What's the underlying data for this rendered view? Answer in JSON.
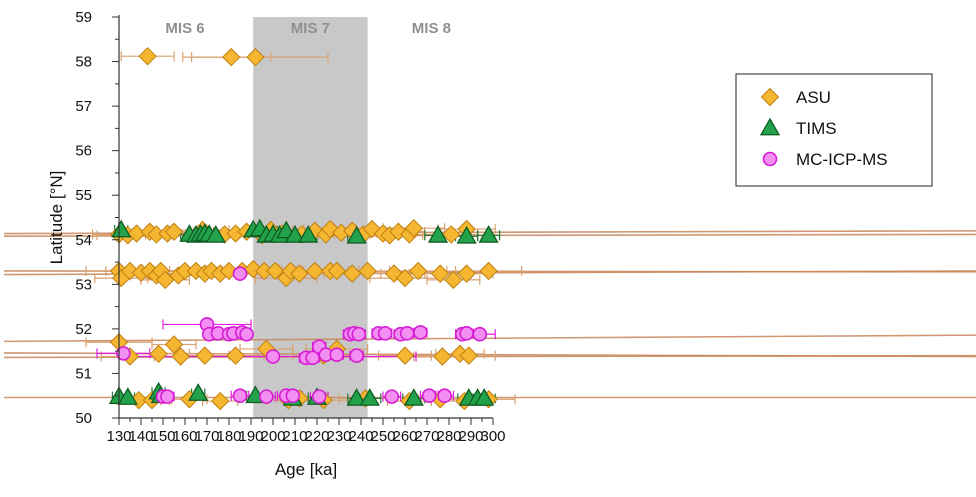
{
  "chart_data": {
    "type": "scatter",
    "xlabel": "Age [ka]",
    "ylabel": "Latitude [°N]",
    "xlim": [
      130,
      300
    ],
    "ylim": [
      50,
      59
    ],
    "x_ticks": [
      130,
      140,
      150,
      160,
      170,
      180,
      190,
      200,
      210,
      220,
      230,
      240,
      250,
      260,
      270,
      280,
      290,
      300
    ],
    "y_ticks": [
      50,
      51,
      52,
      53,
      54,
      55,
      56,
      57,
      58,
      59
    ],
    "grid": false,
    "legend_position": "top-right",
    "shaded_interval": {
      "label": "MIS 7",
      "x_start": 191,
      "x_end": 243,
      "color": "#c8c8c8"
    },
    "period_labels": [
      {
        "text": "MIS 6",
        "x": 160
      },
      {
        "text": "MIS 7",
        "x": 217
      },
      {
        "text": "MIS 8",
        "x": 272
      }
    ],
    "series": [
      {
        "name": "ASU",
        "marker": "diamond",
        "color": "#f5b731",
        "edge": "#c07f10",
        "errcolor": "#d9a271",
        "points": [
          {
            "x": 143,
            "y": 58.12,
            "err": 12
          },
          {
            "x": 181,
            "y": 58.1,
            "err": 18
          },
          {
            "x": 192,
            "y": 58.1,
            "err": 33
          },
          {
            "x": 130,
            "y": 54.12,
            "err": 12
          },
          {
            "x": 134,
            "y": 54.1,
            "err": 14
          },
          {
            "x": 138,
            "y": 54.14,
            "err": 9
          },
          {
            "x": 144,
            "y": 54.18,
            "err": 11
          },
          {
            "x": 147,
            "y": 54.12,
            "err": 14
          },
          {
            "x": 152,
            "y": 54.14,
            "err": 16
          },
          {
            "x": 155,
            "y": 54.18,
            "err": 9
          },
          {
            "x": 168,
            "y": 54.22,
            "err": 12
          },
          {
            "x": 178,
            "y": 54.12,
            "err": 17
          },
          {
            "x": 183,
            "y": 54.14,
            "err": 13
          },
          {
            "x": 188,
            "y": 54.18,
            "err": 15
          },
          {
            "x": 195,
            "y": 54.1,
            "err": 12
          },
          {
            "x": 199,
            "y": 54.22,
            "err": 10
          },
          {
            "x": 204,
            "y": 54.14,
            "err": 17
          },
          {
            "x": 213,
            "y": 54.12,
            "err": 11
          },
          {
            "x": 219,
            "y": 54.2,
            "err": 13
          },
          {
            "x": 224,
            "y": 54.12,
            "err": 14
          },
          {
            "x": 226,
            "y": 54.24,
            "err": 12
          },
          {
            "x": 231,
            "y": 54.16,
            "err": 16
          },
          {
            "x": 236,
            "y": 54.2,
            "err": 15
          },
          {
            "x": 241,
            "y": 54.12,
            "err": 13
          },
          {
            "x": 245,
            "y": 54.24,
            "err": 17
          },
          {
            "x": 250,
            "y": 54.14,
            "err": 12
          },
          {
            "x": 253,
            "y": 54.1,
            "err": 15
          },
          {
            "x": 257,
            "y": 54.18,
            "err": 12
          },
          {
            "x": 262,
            "y": 54.12,
            "err": 18
          },
          {
            "x": 264,
            "y": 54.26,
            "err": 14
          },
          {
            "x": 281,
            "y": 54.12,
            "err": 12
          },
          {
            "x": 288,
            "y": 54.24,
            "err": 13
          },
          {
            "x": 130,
            "y": 53.3,
            "err": 15
          },
          {
            "x": 131,
            "y": 53.14,
            "err": 12
          },
          {
            "x": 135,
            "y": 53.3,
            "err": 11
          },
          {
            "x": 140,
            "y": 53.26,
            "err": 11
          },
          {
            "x": 144,
            "y": 53.3,
            "err": 14
          },
          {
            "x": 147,
            "y": 53.2,
            "err": 12
          },
          {
            "x": 149,
            "y": 53.3,
            "err": 12
          },
          {
            "x": 151,
            "y": 53.1,
            "err": 11
          },
          {
            "x": 157,
            "y": 53.2,
            "err": 13
          },
          {
            "x": 160,
            "y": 53.3,
            "err": 14
          },
          {
            "x": 165,
            "y": 53.3,
            "err": 12
          },
          {
            "x": 169,
            "y": 53.24,
            "err": 11
          },
          {
            "x": 172,
            "y": 53.3,
            "err": 14
          },
          {
            "x": 176,
            "y": 53.24,
            "err": 16
          },
          {
            "x": 180,
            "y": 53.3,
            "err": 14
          },
          {
            "x": 186,
            "y": 53.3,
            "err": 12
          },
          {
            "x": 191,
            "y": 53.34,
            "err": 12
          },
          {
            "x": 196,
            "y": 53.3,
            "err": 15
          },
          {
            "x": 201,
            "y": 53.3,
            "err": 13
          },
          {
            "x": 206,
            "y": 53.14,
            "err": 14
          },
          {
            "x": 208,
            "y": 53.3,
            "err": 12
          },
          {
            "x": 212,
            "y": 53.24,
            "err": 11
          },
          {
            "x": 219,
            "y": 53.3,
            "err": 15
          },
          {
            "x": 226,
            "y": 53.3,
            "err": 13
          },
          {
            "x": 229,
            "y": 53.3,
            "err": 15
          },
          {
            "x": 236,
            "y": 53.24,
            "err": 13
          },
          {
            "x": 243,
            "y": 53.3,
            "err": 12
          },
          {
            "x": 255,
            "y": 53.24,
            "err": 14
          },
          {
            "x": 260,
            "y": 53.14,
            "err": 16
          },
          {
            "x": 266,
            "y": 53.3,
            "err": 13
          },
          {
            "x": 276,
            "y": 53.24,
            "err": 14
          },
          {
            "x": 282,
            "y": 53.1,
            "err": 12
          },
          {
            "x": 288,
            "y": 53.24,
            "err": 12
          },
          {
            "x": 298,
            "y": 53.3,
            "err": 15
          },
          {
            "x": 130,
            "y": 51.7,
            "err": 15
          },
          {
            "x": 155,
            "y": 51.65,
            "err": 10
          },
          {
            "x": 197,
            "y": 51.55,
            "err": 12
          },
          {
            "x": 229,
            "y": 51.55,
            "err": 14
          },
          {
            "x": 135,
            "y": 51.38,
            "err": 13
          },
          {
            "x": 148,
            "y": 51.44,
            "err": 14
          },
          {
            "x": 158,
            "y": 51.38,
            "err": 12
          },
          {
            "x": 169,
            "y": 51.4,
            "err": 11
          },
          {
            "x": 183,
            "y": 51.4,
            "err": 13
          },
          {
            "x": 223,
            "y": 51.4,
            "err": 14
          },
          {
            "x": 260,
            "y": 51.4,
            "err": 12
          },
          {
            "x": 277,
            "y": 51.38,
            "err": 13
          },
          {
            "x": 285,
            "y": 51.44,
            "err": 11
          },
          {
            "x": 289,
            "y": 51.4,
            "err": 12
          },
          {
            "x": 139,
            "y": 50.4,
            "err": 10
          },
          {
            "x": 145,
            "y": 50.4,
            "err": 8
          },
          {
            "x": 162,
            "y": 50.42,
            "err": 8
          },
          {
            "x": 176,
            "y": 50.38,
            "err": 8
          },
          {
            "x": 207,
            "y": 50.4,
            "err": 10
          },
          {
            "x": 212,
            "y": 50.44,
            "err": 10
          },
          {
            "x": 223,
            "y": 50.4,
            "err": 12
          },
          {
            "x": 242,
            "y": 50.44,
            "err": 12
          },
          {
            "x": 262,
            "y": 50.38,
            "err": 10
          },
          {
            "x": 276,
            "y": 50.42,
            "err": 10
          },
          {
            "x": 287,
            "y": 50.38,
            "err": 10
          },
          {
            "x": 298,
            "y": 50.42,
            "err": 12
          }
        ]
      },
      {
        "name": "TIMS",
        "marker": "triangle",
        "color": "#22a34b",
        "edge": "#0f5c23",
        "errcolor": "#1f7a33",
        "points": [
          {
            "x": 131,
            "y": 54.22,
            "err": 3
          },
          {
            "x": 162,
            "y": 54.12,
            "err": 4
          },
          {
            "x": 165,
            "y": 54.1,
            "err": 4
          },
          {
            "x": 167,
            "y": 54.12,
            "err": 3
          },
          {
            "x": 169,
            "y": 54.14,
            "err": 4
          },
          {
            "x": 171,
            "y": 54.12,
            "err": 4
          },
          {
            "x": 174,
            "y": 54.1,
            "err": 3
          },
          {
            "x": 191,
            "y": 54.22,
            "err": 4
          },
          {
            "x": 194,
            "y": 54.24,
            "err": 4
          },
          {
            "x": 197,
            "y": 54.1,
            "err": 3
          },
          {
            "x": 200,
            "y": 54.12,
            "err": 4
          },
          {
            "x": 203,
            "y": 54.1,
            "err": 3
          },
          {
            "x": 206,
            "y": 54.2,
            "err": 4
          },
          {
            "x": 210,
            "y": 54.1,
            "err": 3
          },
          {
            "x": 216,
            "y": 54.1,
            "err": 4
          },
          {
            "x": 238,
            "y": 54.08,
            "err": 4
          },
          {
            "x": 275,
            "y": 54.1,
            "err": 6
          },
          {
            "x": 288,
            "y": 54.08,
            "err": 5
          },
          {
            "x": 298,
            "y": 54.1,
            "err": 5
          },
          {
            "x": 130,
            "y": 50.48,
            "err": 3
          },
          {
            "x": 134,
            "y": 50.46,
            "err": 3
          },
          {
            "x": 148,
            "y": 50.58,
            "err": 3
          },
          {
            "x": 149,
            "y": 50.5,
            "err": 3
          },
          {
            "x": 166,
            "y": 50.55,
            "err": 3
          },
          {
            "x": 192,
            "y": 50.5,
            "err": 4
          },
          {
            "x": 209,
            "y": 50.44,
            "err": 3
          },
          {
            "x": 220,
            "y": 50.46,
            "err": 4
          },
          {
            "x": 238,
            "y": 50.44,
            "err": 4
          },
          {
            "x": 244,
            "y": 50.44,
            "err": 5
          },
          {
            "x": 264,
            "y": 50.44,
            "err": 5
          },
          {
            "x": 289,
            "y": 50.44,
            "err": 5
          },
          {
            "x": 293,
            "y": 50.44,
            "err": 5
          },
          {
            "x": 296,
            "y": 50.44,
            "err": 5
          }
        ]
      },
      {
        "name": "MC-ICP-MS",
        "marker": "circle",
        "color": "#f38ef2",
        "edge": "#d61bd4",
        "errcolor": "#e020de",
        "points": [
          {
            "x": 170,
            "y": 52.1,
            "err": 20
          },
          {
            "x": 171,
            "y": 51.88,
            "err": 2
          },
          {
            "x": 175,
            "y": 51.9,
            "err": 2
          },
          {
            "x": 180,
            "y": 51.88,
            "err": 2
          },
          {
            "x": 182,
            "y": 51.9,
            "err": 2
          },
          {
            "x": 186,
            "y": 51.92,
            "err": 2
          },
          {
            "x": 188,
            "y": 51.88,
            "err": 2
          },
          {
            "x": 235,
            "y": 51.88,
            "err": 3
          },
          {
            "x": 237,
            "y": 51.9,
            "err": 3
          },
          {
            "x": 239,
            "y": 51.88,
            "err": 3
          },
          {
            "x": 248,
            "y": 51.9,
            "err": 3
          },
          {
            "x": 251,
            "y": 51.9,
            "err": 3
          },
          {
            "x": 258,
            "y": 51.88,
            "err": 3
          },
          {
            "x": 261,
            "y": 51.9,
            "err": 3
          },
          {
            "x": 267,
            "y": 51.92,
            "err": 3
          },
          {
            "x": 286,
            "y": 51.88,
            "err": 3
          },
          {
            "x": 288,
            "y": 51.9,
            "err": 3
          },
          {
            "x": 294,
            "y": 51.88,
            "err": 7
          },
          {
            "x": 132,
            "y": 51.45,
            "err": 12
          },
          {
            "x": 200,
            "y": 51.38,
            "err": 65
          },
          {
            "x": 215,
            "y": 51.35,
            "err": 3
          },
          {
            "x": 218,
            "y": 51.35,
            "err": 3
          },
          {
            "x": 221,
            "y": 51.6,
            "err": 3
          },
          {
            "x": 224,
            "y": 51.42,
            "err": 3
          },
          {
            "x": 229,
            "y": 51.42,
            "err": 3
          },
          {
            "x": 238,
            "y": 51.4,
            "err": 3
          },
          {
            "x": 185,
            "y": 53.24,
            "err": 10
          },
          {
            "x": 150,
            "y": 50.48,
            "err": 3
          },
          {
            "x": 152,
            "y": 50.48,
            "err": 3
          },
          {
            "x": 185,
            "y": 50.5,
            "err": 4
          },
          {
            "x": 197,
            "y": 50.48,
            "err": 4
          },
          {
            "x": 206,
            "y": 50.5,
            "err": 4
          },
          {
            "x": 209,
            "y": 50.5,
            "err": 4
          },
          {
            "x": 221,
            "y": 50.48,
            "err": 4
          },
          {
            "x": 254,
            "y": 50.48,
            "err": 4
          },
          {
            "x": 271,
            "y": 50.5,
            "err": 4
          },
          {
            "x": 278,
            "y": 50.5,
            "err": 4
          }
        ]
      }
    ],
    "trend_lines": [
      {
        "y_left": 54.14,
        "y_right": 54.2
      },
      {
        "y_left": 54.08,
        "y_right": 54.12
      },
      {
        "y_left": 53.3,
        "y_right": 53.28
      },
      {
        "y_left": 53.22,
        "y_right": 53.3
      },
      {
        "y_left": 51.72,
        "y_right": 51.86
      },
      {
        "y_left": 51.46,
        "y_right": 51.38
      },
      {
        "y_left": 51.36,
        "y_right": 51.4
      },
      {
        "y_left": 50.46,
        "y_right": 50.46
      }
    ]
  }
}
